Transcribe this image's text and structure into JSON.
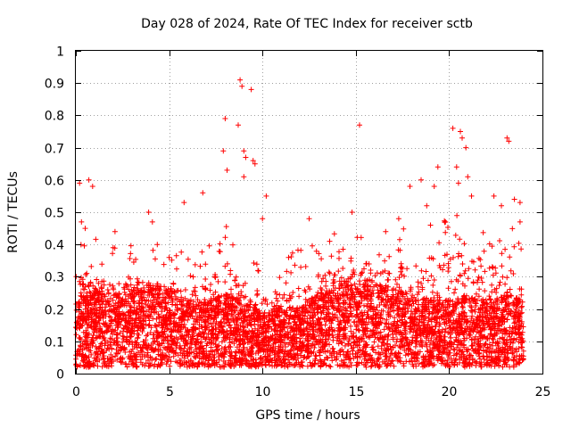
{
  "chart_data": {
    "type": "scatter",
    "title": "Day 028 of 2024, Rate Of TEC Index for receiver sctb",
    "xlabel": "GPS time / hours",
    "ylabel": "ROTI / TECUs",
    "xlim": [
      0,
      25
    ],
    "ylim": [
      0,
      1
    ],
    "x_ticks": [
      "0",
      "5",
      "10",
      "15",
      "20",
      "25"
    ],
    "y_ticks": [
      "0",
      "0.1",
      "0.2",
      "0.3",
      "0.4",
      "0.5",
      "0.6",
      "0.7",
      "0.8",
      "0.9",
      "1"
    ],
    "grid": true,
    "marker": "plus",
    "color": "#ff0000",
    "density_profile": {
      "x": [
        0,
        1,
        2,
        3,
        4,
        5,
        6,
        7,
        8,
        9,
        10,
        11,
        12,
        13,
        14,
        15,
        16,
        17,
        18,
        19,
        20,
        21,
        22,
        23,
        24
      ],
      "median": [
        0.12,
        0.14,
        0.13,
        0.13,
        0.15,
        0.14,
        0.12,
        0.12,
        0.13,
        0.12,
        0.1,
        0.11,
        0.11,
        0.13,
        0.15,
        0.16,
        0.15,
        0.14,
        0.13,
        0.12,
        0.12,
        0.13,
        0.12,
        0.13,
        0.12
      ],
      "upper": [
        0.3,
        0.3,
        0.28,
        0.28,
        0.3,
        0.27,
        0.26,
        0.28,
        0.34,
        0.3,
        0.24,
        0.26,
        0.27,
        0.3,
        0.34,
        0.36,
        0.34,
        0.32,
        0.35,
        0.36,
        0.38,
        0.36,
        0.33,
        0.35,
        0.32
      ]
    },
    "outliers": [
      {
        "x": 0.2,
        "y": 0.59
      },
      {
        "x": 0.7,
        "y": 0.6
      },
      {
        "x": 0.9,
        "y": 0.58
      },
      {
        "x": 0.3,
        "y": 0.47
      },
      {
        "x": 0.5,
        "y": 0.45
      },
      {
        "x": 2.1,
        "y": 0.44
      },
      {
        "x": 3.9,
        "y": 0.5
      },
      {
        "x": 4.1,
        "y": 0.47
      },
      {
        "x": 6.8,
        "y": 0.56
      },
      {
        "x": 5.8,
        "y": 0.53
      },
      {
        "x": 8.0,
        "y": 0.79
      },
      {
        "x": 8.8,
        "y": 0.91
      },
      {
        "x": 8.9,
        "y": 0.89
      },
      {
        "x": 9.4,
        "y": 0.88
      },
      {
        "x": 8.7,
        "y": 0.77
      },
      {
        "x": 9.0,
        "y": 0.69
      },
      {
        "x": 9.1,
        "y": 0.67
      },
      {
        "x": 9.5,
        "y": 0.66
      },
      {
        "x": 9.6,
        "y": 0.65
      },
      {
        "x": 7.9,
        "y": 0.69
      },
      {
        "x": 8.1,
        "y": 0.63
      },
      {
        "x": 9.0,
        "y": 0.61
      },
      {
        "x": 15.2,
        "y": 0.77
      },
      {
        "x": 14.8,
        "y": 0.5
      },
      {
        "x": 12.5,
        "y": 0.48
      },
      {
        "x": 13.6,
        "y": 0.41
      },
      {
        "x": 17.3,
        "y": 0.48
      },
      {
        "x": 17.9,
        "y": 0.58
      },
      {
        "x": 18.5,
        "y": 0.6
      },
      {
        "x": 19.2,
        "y": 0.58
      },
      {
        "x": 19.4,
        "y": 0.64
      },
      {
        "x": 20.2,
        "y": 0.76
      },
      {
        "x": 20.6,
        "y": 0.75
      },
      {
        "x": 20.7,
        "y": 0.73
      },
      {
        "x": 20.9,
        "y": 0.7
      },
      {
        "x": 20.4,
        "y": 0.64
      },
      {
        "x": 21.0,
        "y": 0.61
      },
      {
        "x": 20.5,
        "y": 0.59
      },
      {
        "x": 21.2,
        "y": 0.55
      },
      {
        "x": 22.4,
        "y": 0.55
      },
      {
        "x": 23.1,
        "y": 0.73
      },
      {
        "x": 23.2,
        "y": 0.72
      },
      {
        "x": 23.5,
        "y": 0.54
      },
      {
        "x": 23.8,
        "y": 0.53
      },
      {
        "x": 22.8,
        "y": 0.52
      },
      {
        "x": 23.8,
        "y": 0.47
      },
      {
        "x": 18.8,
        "y": 0.52
      },
      {
        "x": 19.0,
        "y": 0.46
      },
      {
        "x": 10.2,
        "y": 0.55
      },
      {
        "x": 10.0,
        "y": 0.48
      },
      {
        "x": 16.6,
        "y": 0.44
      },
      {
        "x": 11.4,
        "y": 0.36
      },
      {
        "x": 2.0,
        "y": 0.39
      },
      {
        "x": 5.0,
        "y": 0.36
      }
    ]
  }
}
